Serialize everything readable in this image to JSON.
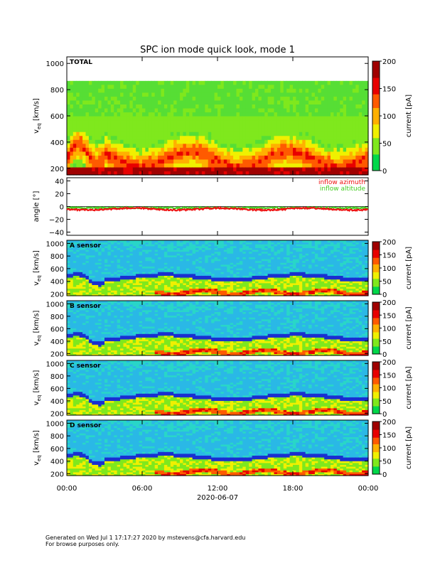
{
  "title": "SPC ion mode quick look, mode 1",
  "footer": {
    "line1": "Generated on Wed Jul  1 17:17:27 2020 by mstevens@cfa.harvard.edu",
    "line2": "For browse purposes only."
  },
  "chart_data": {
    "type": "heatmap",
    "xlabel": "2020-06-07",
    "x_ticks": [
      "00:00",
      "06:00",
      "12:00",
      "18:00",
      "00:00"
    ],
    "x_range_hours": [
      0,
      24
    ],
    "colors": {
      "axis": "#000000",
      "azimuth": "#ee1111",
      "altitude": "#44cc22",
      "background": "#ffffff"
    },
    "colormap": [
      "#00d84a",
      "#7fe81d",
      "#f0f000",
      "#ffb000",
      "#ff5a00",
      "#e80000",
      "#a00000"
    ],
    "colorbar": {
      "label": "current [pA]",
      "range": [
        0,
        200
      ],
      "ticks_main": [
        "0",
        "50",
        "100",
        "150",
        "200"
      ],
      "ticks_sensor": [
        "0",
        "50",
        "100",
        "150",
        "200"
      ]
    },
    "panels": [
      {
        "id": "total",
        "label": "TOTAL",
        "ylabel_main": "v",
        "ylabel_sub": "eq",
        "ylabel_unit": " [km/s]",
        "ylim": [
          150,
          1050
        ],
        "yticks": [
          "200",
          "400",
          "600",
          "800",
          "1000"
        ],
        "ytick_values": [
          200,
          400,
          600,
          800,
          1000
        ]
      },
      {
        "id": "A",
        "label": "A sensor",
        "ylabel_main": "v",
        "ylabel_sub": "eq",
        "ylabel_unit": " [km/s]",
        "ylim": [
          170,
          1050
        ],
        "yticks": [
          "200",
          "400",
          "600",
          "800",
          "1000"
        ],
        "ytick_values": [
          200,
          400,
          600,
          800,
          1000
        ]
      },
      {
        "id": "B",
        "label": "B sensor",
        "ylabel_main": "v",
        "ylabel_sub": "eq",
        "ylabel_unit": " [km/s]",
        "ylim": [
          170,
          1050
        ],
        "yticks": [
          "200",
          "400",
          "600",
          "800",
          "1000"
        ],
        "ytick_values": [
          200,
          400,
          600,
          800,
          1000
        ]
      },
      {
        "id": "C",
        "label": "C sensor",
        "ylabel_main": "v",
        "ylabel_sub": "eq",
        "ylabel_unit": " [km/s]",
        "ylim": [
          170,
          1050
        ],
        "yticks": [
          "200",
          "400",
          "600",
          "800",
          "1000"
        ],
        "ytick_values": [
          200,
          400,
          600,
          800,
          1000
        ]
      },
      {
        "id": "D",
        "label": "D sensor",
        "ylabel_main": "v",
        "ylabel_sub": "eq",
        "ylabel_unit": " [km/s]",
        "ylim": [
          170,
          1050
        ],
        "yticks": [
          "200",
          "400",
          "600",
          "800",
          "1000"
        ],
        "ytick_values": [
          200,
          400,
          600,
          800,
          1000
        ]
      }
    ],
    "angle_panel": {
      "ylabel": "angle [°]",
      "ylim": [
        -45,
        45
      ],
      "yticks": [
        "40",
        "20",
        "0",
        "−20",
        "−40"
      ],
      "ytick_values": [
        40,
        20,
        0,
        -20,
        -40
      ],
      "series": [
        {
          "name": "inflow azimuth",
          "mean_deg": -4
        },
        {
          "name": "inflow altitude",
          "mean_deg": -2
        }
      ]
    }
  }
}
